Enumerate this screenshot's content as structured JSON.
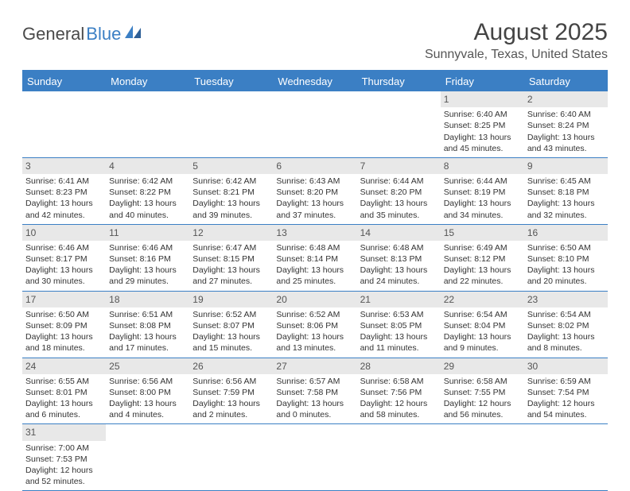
{
  "brand": {
    "part1": "General",
    "part2": "Blue"
  },
  "title": "August 2025",
  "location": "Sunnyvale, Texas, United States",
  "colors": {
    "accent": "#3b7fc4",
    "daynum_bg": "#e8e8e8",
    "text": "#333333",
    "bg": "#ffffff"
  },
  "day_headers": [
    "Sunday",
    "Monday",
    "Tuesday",
    "Wednesday",
    "Thursday",
    "Friday",
    "Saturday"
  ],
  "weeks": [
    [
      null,
      null,
      null,
      null,
      null,
      {
        "d": "1",
        "sr": "Sunrise: 6:40 AM",
        "ss": "Sunset: 8:25 PM",
        "dl1": "Daylight: 13 hours",
        "dl2": "and 45 minutes."
      },
      {
        "d": "2",
        "sr": "Sunrise: 6:40 AM",
        "ss": "Sunset: 8:24 PM",
        "dl1": "Daylight: 13 hours",
        "dl2": "and 43 minutes."
      }
    ],
    [
      {
        "d": "3",
        "sr": "Sunrise: 6:41 AM",
        "ss": "Sunset: 8:23 PM",
        "dl1": "Daylight: 13 hours",
        "dl2": "and 42 minutes."
      },
      {
        "d": "4",
        "sr": "Sunrise: 6:42 AM",
        "ss": "Sunset: 8:22 PM",
        "dl1": "Daylight: 13 hours",
        "dl2": "and 40 minutes."
      },
      {
        "d": "5",
        "sr": "Sunrise: 6:42 AM",
        "ss": "Sunset: 8:21 PM",
        "dl1": "Daylight: 13 hours",
        "dl2": "and 39 minutes."
      },
      {
        "d": "6",
        "sr": "Sunrise: 6:43 AM",
        "ss": "Sunset: 8:20 PM",
        "dl1": "Daylight: 13 hours",
        "dl2": "and 37 minutes."
      },
      {
        "d": "7",
        "sr": "Sunrise: 6:44 AM",
        "ss": "Sunset: 8:20 PM",
        "dl1": "Daylight: 13 hours",
        "dl2": "and 35 minutes."
      },
      {
        "d": "8",
        "sr": "Sunrise: 6:44 AM",
        "ss": "Sunset: 8:19 PM",
        "dl1": "Daylight: 13 hours",
        "dl2": "and 34 minutes."
      },
      {
        "d": "9",
        "sr": "Sunrise: 6:45 AM",
        "ss": "Sunset: 8:18 PM",
        "dl1": "Daylight: 13 hours",
        "dl2": "and 32 minutes."
      }
    ],
    [
      {
        "d": "10",
        "sr": "Sunrise: 6:46 AM",
        "ss": "Sunset: 8:17 PM",
        "dl1": "Daylight: 13 hours",
        "dl2": "and 30 minutes."
      },
      {
        "d": "11",
        "sr": "Sunrise: 6:46 AM",
        "ss": "Sunset: 8:16 PM",
        "dl1": "Daylight: 13 hours",
        "dl2": "and 29 minutes."
      },
      {
        "d": "12",
        "sr": "Sunrise: 6:47 AM",
        "ss": "Sunset: 8:15 PM",
        "dl1": "Daylight: 13 hours",
        "dl2": "and 27 minutes."
      },
      {
        "d": "13",
        "sr": "Sunrise: 6:48 AM",
        "ss": "Sunset: 8:14 PM",
        "dl1": "Daylight: 13 hours",
        "dl2": "and 25 minutes."
      },
      {
        "d": "14",
        "sr": "Sunrise: 6:48 AM",
        "ss": "Sunset: 8:13 PM",
        "dl1": "Daylight: 13 hours",
        "dl2": "and 24 minutes."
      },
      {
        "d": "15",
        "sr": "Sunrise: 6:49 AM",
        "ss": "Sunset: 8:12 PM",
        "dl1": "Daylight: 13 hours",
        "dl2": "and 22 minutes."
      },
      {
        "d": "16",
        "sr": "Sunrise: 6:50 AM",
        "ss": "Sunset: 8:10 PM",
        "dl1": "Daylight: 13 hours",
        "dl2": "and 20 minutes."
      }
    ],
    [
      {
        "d": "17",
        "sr": "Sunrise: 6:50 AM",
        "ss": "Sunset: 8:09 PM",
        "dl1": "Daylight: 13 hours",
        "dl2": "and 18 minutes."
      },
      {
        "d": "18",
        "sr": "Sunrise: 6:51 AM",
        "ss": "Sunset: 8:08 PM",
        "dl1": "Daylight: 13 hours",
        "dl2": "and 17 minutes."
      },
      {
        "d": "19",
        "sr": "Sunrise: 6:52 AM",
        "ss": "Sunset: 8:07 PM",
        "dl1": "Daylight: 13 hours",
        "dl2": "and 15 minutes."
      },
      {
        "d": "20",
        "sr": "Sunrise: 6:52 AM",
        "ss": "Sunset: 8:06 PM",
        "dl1": "Daylight: 13 hours",
        "dl2": "and 13 minutes."
      },
      {
        "d": "21",
        "sr": "Sunrise: 6:53 AM",
        "ss": "Sunset: 8:05 PM",
        "dl1": "Daylight: 13 hours",
        "dl2": "and 11 minutes."
      },
      {
        "d": "22",
        "sr": "Sunrise: 6:54 AM",
        "ss": "Sunset: 8:04 PM",
        "dl1": "Daylight: 13 hours",
        "dl2": "and 9 minutes."
      },
      {
        "d": "23",
        "sr": "Sunrise: 6:54 AM",
        "ss": "Sunset: 8:02 PM",
        "dl1": "Daylight: 13 hours",
        "dl2": "and 8 minutes."
      }
    ],
    [
      {
        "d": "24",
        "sr": "Sunrise: 6:55 AM",
        "ss": "Sunset: 8:01 PM",
        "dl1": "Daylight: 13 hours",
        "dl2": "and 6 minutes."
      },
      {
        "d": "25",
        "sr": "Sunrise: 6:56 AM",
        "ss": "Sunset: 8:00 PM",
        "dl1": "Daylight: 13 hours",
        "dl2": "and 4 minutes."
      },
      {
        "d": "26",
        "sr": "Sunrise: 6:56 AM",
        "ss": "Sunset: 7:59 PM",
        "dl1": "Daylight: 13 hours",
        "dl2": "and 2 minutes."
      },
      {
        "d": "27",
        "sr": "Sunrise: 6:57 AM",
        "ss": "Sunset: 7:58 PM",
        "dl1": "Daylight: 13 hours",
        "dl2": "and 0 minutes."
      },
      {
        "d": "28",
        "sr": "Sunrise: 6:58 AM",
        "ss": "Sunset: 7:56 PM",
        "dl1": "Daylight: 12 hours",
        "dl2": "and 58 minutes."
      },
      {
        "d": "29",
        "sr": "Sunrise: 6:58 AM",
        "ss": "Sunset: 7:55 PM",
        "dl1": "Daylight: 12 hours",
        "dl2": "and 56 minutes."
      },
      {
        "d": "30",
        "sr": "Sunrise: 6:59 AM",
        "ss": "Sunset: 7:54 PM",
        "dl1": "Daylight: 12 hours",
        "dl2": "and 54 minutes."
      }
    ],
    [
      {
        "d": "31",
        "sr": "Sunrise: 7:00 AM",
        "ss": "Sunset: 7:53 PM",
        "dl1": "Daylight: 12 hours",
        "dl2": "and 52 minutes."
      },
      null,
      null,
      null,
      null,
      null,
      null
    ]
  ]
}
